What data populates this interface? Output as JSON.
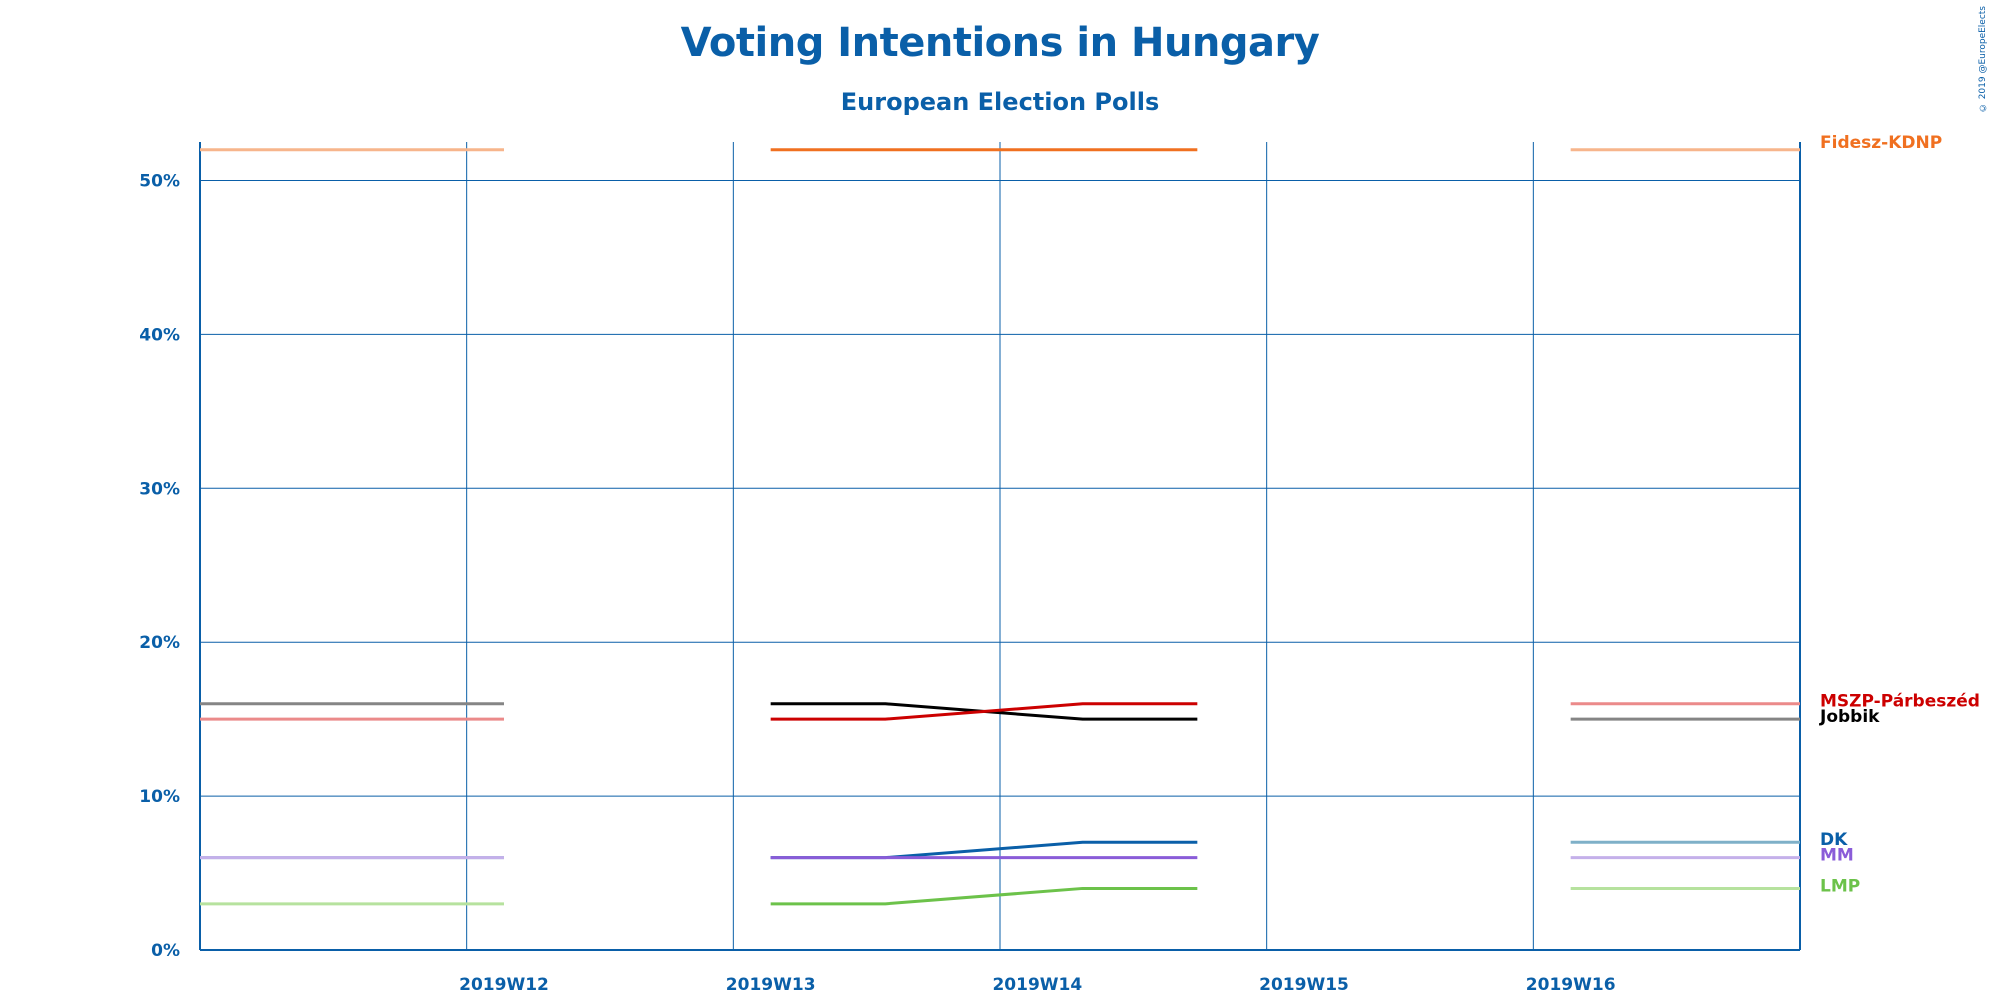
{
  "chart_data": {
    "type": "line",
    "title": "Voting Intentions in Hungary",
    "subtitle": "European Election Polls",
    "credit": "© 2019 @EuropeElects",
    "xlabel": "",
    "ylabel": "",
    "ylim": [
      0,
      52.5
    ],
    "yticks": [
      "0%",
      "10%",
      "20%",
      "30%",
      "40%",
      "50%"
    ],
    "categories": [
      "2019W12",
      "2019W13",
      "2019W14",
      "2019W15",
      "2019W16"
    ],
    "grid": true,
    "legend": "right",
    "segments": [
      {
        "series": "Fidesz-KDNP",
        "x": [
          0.0,
          1.14
        ],
        "y": [
          52,
          52
        ],
        "faded": true
      },
      {
        "series": "Fidesz-KDNP",
        "x": [
          2.14,
          3.74
        ],
        "y": [
          52,
          52
        ],
        "faded": false
      },
      {
        "series": "Fidesz-KDNP",
        "x": [
          5.14,
          6.0
        ],
        "y": [
          52,
          52
        ],
        "faded": true
      },
      {
        "series": "Jobbik",
        "x": [
          0.0,
          1.14
        ],
        "y": [
          16,
          16
        ],
        "faded": true
      },
      {
        "series": "Jobbik",
        "x": [
          2.14,
          2.57,
          3.31,
          3.74
        ],
        "y": [
          16,
          16,
          15,
          15
        ],
        "faded": false
      },
      {
        "series": "Jobbik",
        "x": [
          5.14,
          6.0
        ],
        "y": [
          15,
          15
        ],
        "faded": true
      },
      {
        "series": "MSZP-Párbeszéd",
        "x": [
          0.0,
          1.14
        ],
        "y": [
          15,
          15
        ],
        "faded": true
      },
      {
        "series": "MSZP-Párbeszéd",
        "x": [
          2.14,
          2.57,
          3.31,
          3.74
        ],
        "y": [
          15,
          15,
          16,
          16
        ],
        "faded": false
      },
      {
        "series": "MSZP-Párbeszéd",
        "x": [
          5.14,
          6.0
        ],
        "y": [
          16,
          16
        ],
        "faded": true
      },
      {
        "series": "DK",
        "x": [
          0.0,
          1.14
        ],
        "y": [
          6,
          6
        ],
        "faded": true
      },
      {
        "series": "DK",
        "x": [
          2.14,
          2.57,
          3.31,
          3.74
        ],
        "y": [
          6,
          6,
          7,
          7
        ],
        "faded": false
      },
      {
        "series": "DK",
        "x": [
          5.14,
          6.0
        ],
        "y": [
          7,
          7
        ],
        "faded": true
      },
      {
        "series": "MM",
        "x": [
          0.0,
          1.14
        ],
        "y": [
          6,
          6
        ],
        "faded": true
      },
      {
        "series": "MM",
        "x": [
          2.14,
          3.74
        ],
        "y": [
          6,
          6
        ],
        "faded": false
      },
      {
        "series": "MM",
        "x": [
          5.14,
          6.0
        ],
        "y": [
          6,
          6
        ],
        "faded": true
      },
      {
        "series": "LMP",
        "x": [
          0.0,
          1.14
        ],
        "y": [
          3,
          3
        ],
        "faded": true
      },
      {
        "series": "LMP",
        "x": [
          2.14,
          2.57,
          3.31,
          3.74
        ],
        "y": [
          3,
          3,
          4,
          4
        ],
        "faded": false
      },
      {
        "series": "LMP",
        "x": [
          5.14,
          6.0
        ],
        "y": [
          4,
          4
        ],
        "faded": true
      }
    ],
    "series": [
      {
        "name": "Fidesz-KDNP",
        "color": "#f07020",
        "faded_color": "#f7b58c",
        "label_value": 52.5
      },
      {
        "name": "MSZP-Párbeszéd",
        "color": "#cc0000",
        "faded_color": "#eb8a8a",
        "label_value": 16.2
      },
      {
        "name": "Jobbik",
        "color": "#000000",
        "faded_color": "#858585",
        "label_value": 15.2
      },
      {
        "name": "DK",
        "color": "#0a5fa8",
        "faded_color": "#7fb0c8",
        "label_value": 7.2
      },
      {
        "name": "MM",
        "color": "#8a5cd8",
        "faded_color": "#c4b0ea",
        "label_value": 6.2
      },
      {
        "name": "LMP",
        "color": "#6cc24a",
        "faded_color": "#b6e29e",
        "label_value": 4.2
      }
    ]
  },
  "colors": {
    "axis": "#0a5fa8",
    "grid": "#0a5fa8",
    "title": "#0a5fa8"
  }
}
